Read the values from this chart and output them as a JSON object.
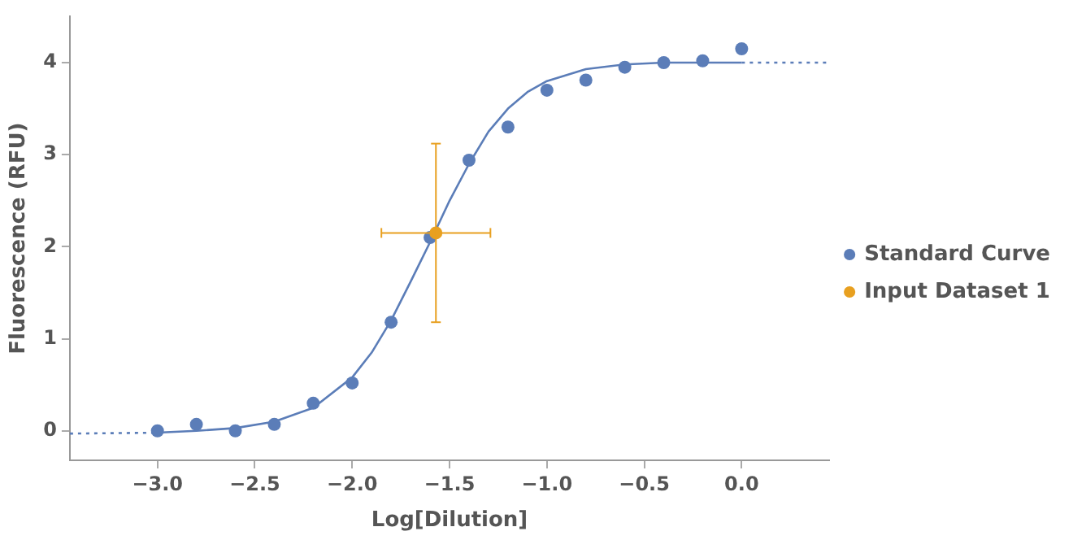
{
  "chart_data": {
    "type": "scatter",
    "xlabel": "Log[Dilution]",
    "ylabel": "Fluorescence (RFU)",
    "xlim": [
      -3.45,
      0.45
    ],
    "ylim": [
      -0.32,
      4.5
    ],
    "xticks": [
      {
        "value": -3,
        "label": "−3.0"
      },
      {
        "value": -2.5,
        "label": "−2.5"
      },
      {
        "value": -2,
        "label": "−2.0"
      },
      {
        "value": -1.5,
        "label": "−1.5"
      },
      {
        "value": -1,
        "label": "−1.0"
      },
      {
        "value": -0.5,
        "label": "−0.5"
      },
      {
        "value": 0,
        "label": "0.0"
      }
    ],
    "yticks": [
      0,
      1,
      2,
      3,
      4
    ],
    "grid": false,
    "legend": "right",
    "marker": "circle",
    "series": [
      {
        "type": "line",
        "color": "#5b7db8",
        "marker": "none",
        "line_style": "solid",
        "x": [
          -3.0,
          -2.8,
          -2.6,
          -2.4,
          -2.2,
          -2.0,
          -1.9,
          -1.8,
          -1.7,
          -1.6,
          -1.5,
          -1.4,
          -1.3,
          -1.2,
          -1.1,
          -1.0,
          -0.8,
          -0.6,
          -0.4,
          -0.2,
          0.0
        ],
        "values": [
          -0.02,
          0.0,
          0.03,
          0.1,
          0.25,
          0.58,
          0.85,
          1.2,
          1.62,
          2.05,
          2.5,
          2.9,
          3.25,
          3.5,
          3.68,
          3.8,
          3.93,
          3.98,
          4.0,
          4.0,
          4.0
        ]
      },
      {
        "type": "line",
        "color": "#5b7db8",
        "marker": "none",
        "line_style": "dotted",
        "x": [
          -3.45,
          -3.0
        ],
        "values": [
          -0.03,
          -0.02
        ]
      },
      {
        "type": "line",
        "color": "#5b7db8",
        "marker": "none",
        "line_style": "dotted",
        "x": [
          0.0,
          0.45
        ],
        "values": [
          4.0,
          4.0
        ]
      },
      {
        "name": "Standard Curve",
        "type": "scatter",
        "color": "#5b7db8",
        "x": [
          -3.0,
          -2.8,
          -2.6,
          -2.4,
          -2.2,
          -2.0,
          -1.8,
          -1.6,
          -1.4,
          -1.2,
          -1.0,
          -0.8,
          -0.6,
          -0.4,
          -0.2,
          0.0
        ],
        "values": [
          0.0,
          0.07,
          0.0,
          0.07,
          0.3,
          0.52,
          1.18,
          2.1,
          2.94,
          3.3,
          3.7,
          3.81,
          3.95,
          4.0,
          4.02,
          4.15
        ]
      },
      {
        "name": "Input Dataset 1",
        "type": "scatter",
        "color": "#e8a020",
        "x": [
          -1.57
        ],
        "values": [
          2.15
        ],
        "errors": [
          0.97
        ],
        "xerrors": [
          0.28
        ]
      }
    ]
  }
}
